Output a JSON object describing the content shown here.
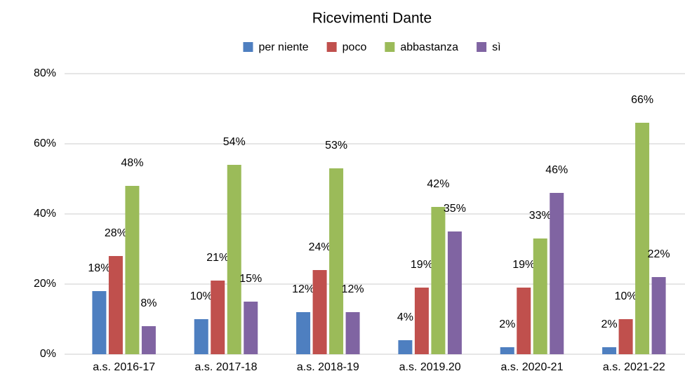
{
  "chart_data": {
    "type": "bar",
    "title": "Ricevimenti Dante",
    "categories": [
      "a.s. 2016-17",
      "a.s. 2017-18",
      "a.s. 2018-19",
      "a.s. 2019.20",
      "a.s. 2020-21",
      "a.s. 2021-22"
    ],
    "series": [
      {
        "name": "per niente",
        "color": "#4e7fc0",
        "values": [
          18,
          10,
          12,
          4,
          2,
          2
        ],
        "value_labels": [
          "18%",
          "10%",
          "12%",
          "4%",
          "2%",
          "2%"
        ]
      },
      {
        "name": "poco",
        "color": "#c0504d",
        "values": [
          28,
          21,
          24,
          19,
          19,
          10
        ],
        "value_labels": [
          "28%",
          "21%",
          "24%",
          "19%",
          "19%",
          "10%"
        ]
      },
      {
        "name": "abbastanza",
        "color": "#9bbb59",
        "values": [
          48,
          54,
          53,
          42,
          33,
          66
        ],
        "value_labels": [
          "48%",
          "54%",
          "53%",
          "42%",
          "33%",
          "66%"
        ]
      },
      {
        "name": "sì",
        "color": "#8064a2",
        "values": [
          8,
          15,
          12,
          35,
          46,
          22
        ],
        "value_labels": [
          "8%",
          "15%",
          "12%",
          "35%",
          "46%",
          "22%"
        ]
      }
    ],
    "ylim": [
      0,
      80
    ],
    "yticks": [
      {
        "value": 0,
        "label": "0%"
      },
      {
        "value": 20,
        "label": "20%"
      },
      {
        "value": 40,
        "label": "40%"
      },
      {
        "value": 60,
        "label": "60%"
      },
      {
        "value": 80,
        "label": "80%"
      }
    ],
    "grid": true,
    "legend": "top"
  }
}
